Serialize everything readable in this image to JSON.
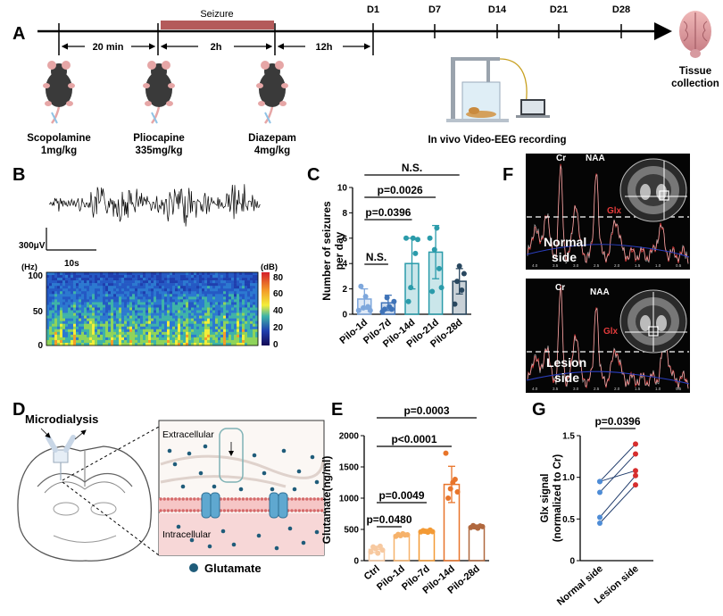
{
  "panels": {
    "A": "A",
    "B": "B",
    "C": "C",
    "D": "D",
    "E": "E",
    "F": "F",
    "G": "G"
  },
  "timeline": {
    "seizure_label": "Seizure",
    "days": [
      "D1",
      "D7",
      "D14",
      "D21",
      "D28"
    ],
    "intervals": [
      "20 min",
      "2h",
      "12h"
    ],
    "tissue_label_1": "Tissue",
    "tissue_label_2": "collection",
    "drugs": [
      {
        "name": "Scopolamine",
        "dose": "1mg/kg"
      },
      {
        "name": "Pliocapine",
        "dose": "335mg/kg"
      },
      {
        "name": "Diazepam",
        "dose": "4mg/kg"
      }
    ],
    "eeg_label": "In vivo Video-EEG recording"
  },
  "eeg": {
    "scale_v": "300μV",
    "scale_t": "10s",
    "hz_label": "(Hz)",
    "hz_ticks": [
      "100",
      "50",
      "0"
    ],
    "db_label": "(dB)",
    "db_ticks": [
      "80",
      "60",
      "40",
      "20",
      "0"
    ]
  },
  "mrs": {
    "normal_1": "Normal",
    "normal_2": "side",
    "lesion_1": "Lesion",
    "lesion_2": "side",
    "peaks": [
      "Cr",
      "NAA",
      "Glx"
    ],
    "x_ticks": [
      "4.0",
      "3.5",
      "3.0",
      "2.5",
      "2.0",
      "1.5",
      "1.0",
      "0.5"
    ]
  },
  "microdialysis": {
    "title": "Microdialysis",
    "extracellular": "Extracellular",
    "intracellular": "Intracellular",
    "legend": "Glutamate"
  },
  "colors": {
    "blue_light": "#7ea7dc",
    "blue_mid": "#3f73b8",
    "teal": "#2a9baa",
    "dark": "#29475f",
    "orange_pale": "#f7c9a0",
    "orange_light": "#f6b26b",
    "orange": "#f39a35",
    "orange_dark": "#e8742a",
    "brown": "#b0683e",
    "seizure_bar": "#b45a5a",
    "red_dot": "#d62e2e"
  },
  "chart_data": [
    {
      "type": "bar",
      "panel": "C",
      "ylabel": "Number of seizures per day",
      "ylim": [
        0,
        10
      ],
      "yticks": [
        0,
        2,
        4,
        6,
        8,
        10
      ],
      "categories": [
        "Pilo-1d",
        "Pilo-7d",
        "Pilo-14d",
        "Pilo-21d",
        "Pilo-28d"
      ],
      "values": [
        1.2,
        0.9,
        4.0,
        4.9,
        2.6
      ],
      "errors": [
        0.8,
        0.6,
        2.0,
        2.1,
        1.0
      ],
      "points": [
        [
          0.3,
          2.2,
          0.5,
          1.4,
          0.6,
          0.3
        ],
        [
          0.2,
          0.4,
          1.3,
          0.6,
          0.4,
          1.0
        ],
        [
          6,
          1,
          2.1,
          6,
          4.8,
          5.9
        ],
        [
          6,
          1.8,
          5.1,
          6.8,
          3.6,
          2.1
        ],
        [
          0.8,
          2.6,
          3.8,
          1.9,
          3.2
        ]
      ],
      "annotations": [
        "N.S.",
        "p=0.0396",
        "p=0.0026",
        "N.S."
      ]
    },
    {
      "type": "bar",
      "panel": "E",
      "ylabel": "Glutamate(ng/ml)",
      "ylim": [
        0,
        2000
      ],
      "yticks": [
        0,
        500,
        1000,
        1500,
        2000
      ],
      "categories": [
        "Ctrl",
        "Pilo-1d",
        "Pilo-7d",
        "Pilo-14d",
        "Pilo-28d"
      ],
      "values": [
        180,
        410,
        470,
        1220,
        540
      ],
      "errors": [
        50,
        20,
        30,
        290,
        30
      ],
      "points": [
        [
          140,
          220,
          190,
          120,
          230,
          170
        ],
        [
          390,
          420,
          400,
          430,
          410,
          415
        ],
        [
          460,
          480,
          470,
          455,
          490,
          465
        ],
        [
          1720,
          1000,
          1150,
          1250,
          1300,
          1100
        ],
        [
          530,
          560,
          540,
          520,
          555,
          545
        ]
      ],
      "annotations": [
        "p=0.0480",
        "p=0.0049",
        "p<0.0001",
        "p=0.0003"
      ]
    },
    {
      "type": "scatter",
      "panel": "G",
      "ylabel": "Glx signal (normalized to Cr)",
      "ylim": [
        0,
        1.5
      ],
      "yticks": [
        "0",
        "0.5",
        "1.0",
        "1.5"
      ],
      "categories": [
        "Normal side",
        "Lesion side"
      ],
      "pairs": [
        [
          0.95,
          1.4
        ],
        [
          0.82,
          1.28
        ],
        [
          0.95,
          1.08
        ],
        [
          0.52,
          1.02
        ],
        [
          0.45,
          0.91
        ]
      ],
      "annotation": "p=0.0396"
    }
  ]
}
